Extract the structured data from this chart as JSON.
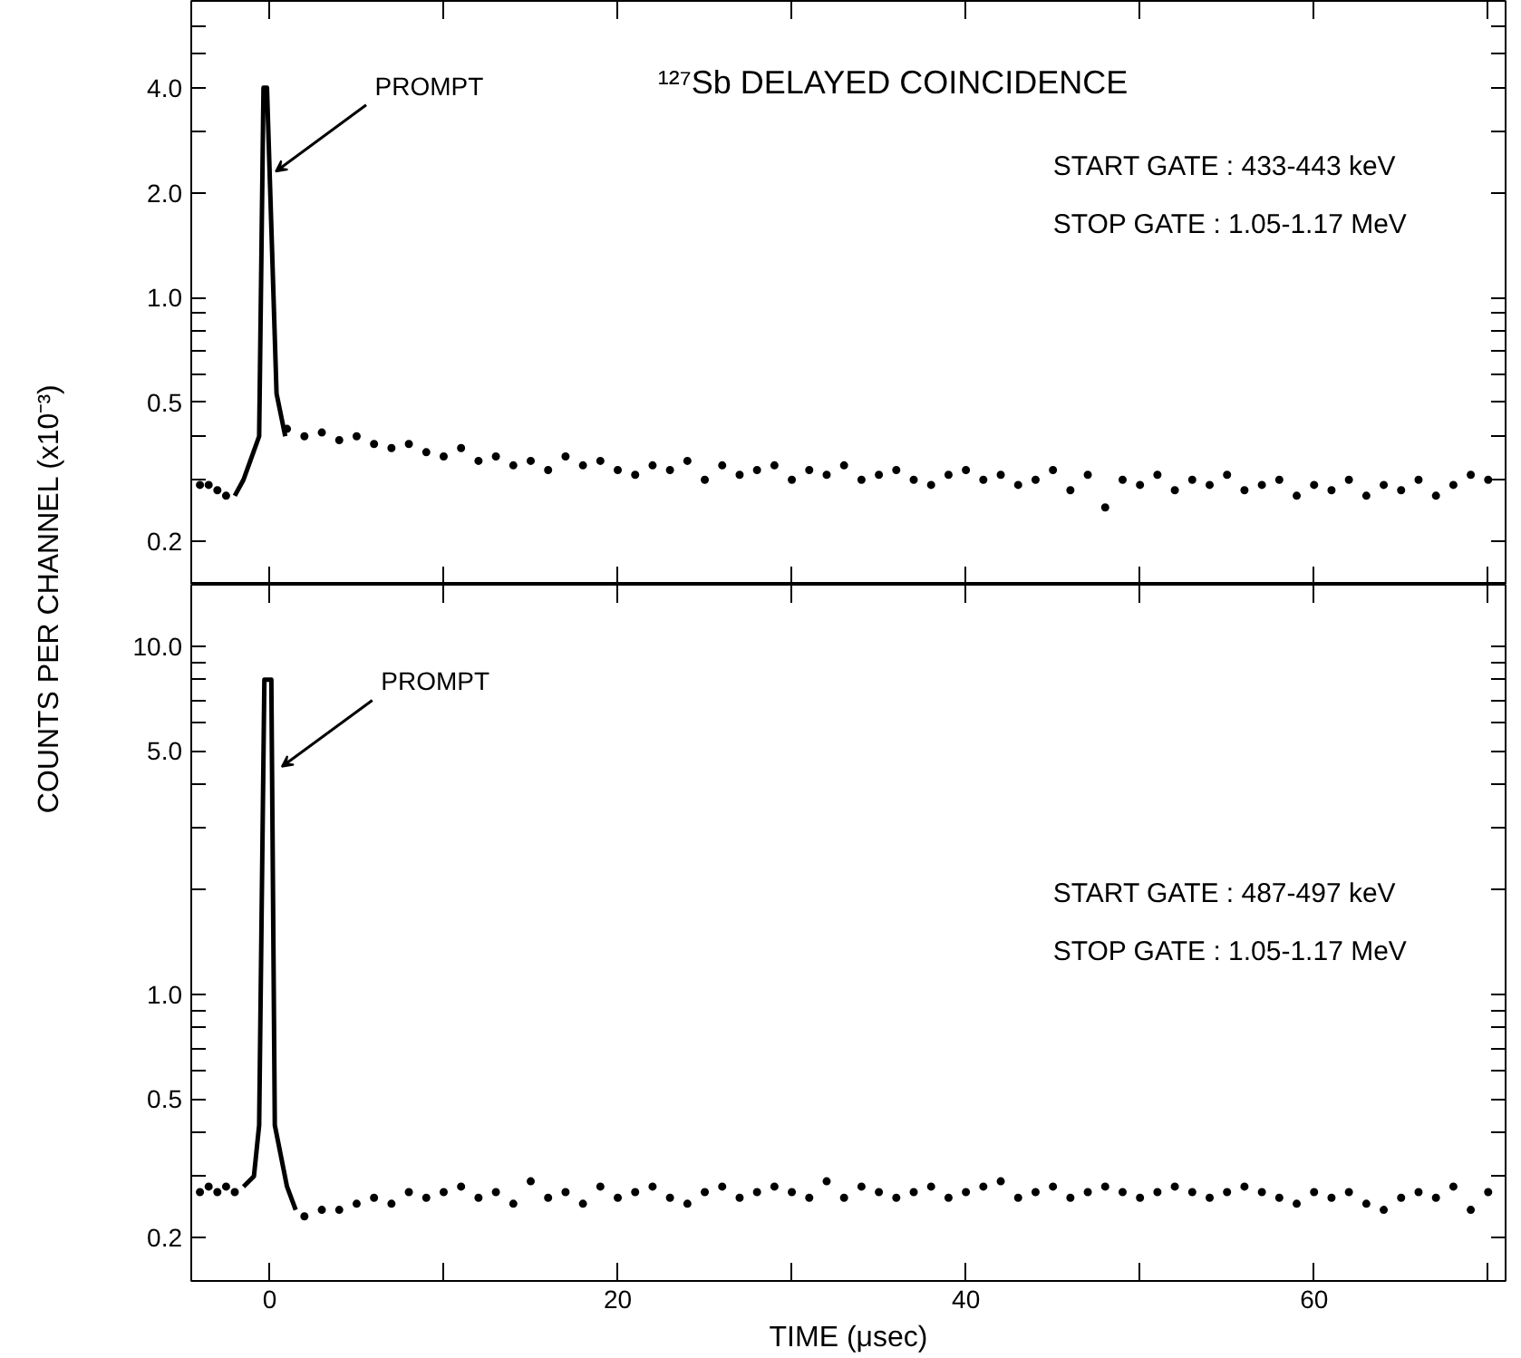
{
  "chart_data": [
    {
      "type": "scatter",
      "title": "¹²⁷Sb DELAYED COINCIDENCE",
      "ylabel": "COUNTS PER CHANNEL (x10⁻³)",
      "log": "y",
      "grid": false,
      "tick_labels": "y",
      "xlim": [
        -4.5,
        71
      ],
      "ylim": [
        0.15,
        7.1
      ],
      "xticks": [
        0,
        {
          "value": 10,
          "label": null
        },
        20,
        {
          "value": 30,
          "label": null
        },
        40,
        {
          "value": 50,
          "label": null
        },
        60,
        {
          "value": 70,
          "label": null
        }
      ],
      "yticks": [
        {
          "value": 0.2,
          "label": "0.2"
        },
        {
          "value": 0.3,
          "label": null
        },
        {
          "value": 0.4,
          "label": null
        },
        {
          "value": 0.5,
          "label": "0.5"
        },
        {
          "value": 0.6,
          "label": null
        },
        {
          "value": 0.7,
          "label": null
        },
        {
          "value": 0.8,
          "label": null
        },
        {
          "value": 0.9,
          "label": null
        },
        {
          "value": 1.0,
          "label": "1.0"
        },
        {
          "value": 2.0,
          "label": "2.0"
        },
        {
          "value": 3.0,
          "label": null
        },
        {
          "value": 4.0,
          "label": "4.0"
        },
        {
          "value": 5.0,
          "label": null
        },
        {
          "value": 6.0,
          "label": null
        }
      ],
      "annotations": [
        {
          "text": "PROMPT",
          "x": 0.05,
          "y": 2.3
        },
        "START GATE :  433-443 keV",
        "STOP GATE   :  1.05-1.17 MeV"
      ],
      "series": [
        {
          "type": "line",
          "color": "#000000",
          "x": [
            -2.0,
            -1.5,
            -0.6,
            -0.35,
            -0.15,
            0.4,
            0.9
          ],
          "values": [
            0.27,
            0.3,
            0.4,
            4.0,
            4.0,
            0.53,
            0.4
          ]
        },
        {
          "marker": "circle",
          "color": "#000000",
          "x": [
            -4,
            -3.5,
            -3,
            -2.5,
            1,
            2,
            3,
            4,
            5,
            6,
            7,
            8,
            9,
            10,
            11,
            12,
            13,
            14,
            15,
            16,
            17,
            18,
            19,
            20,
            21,
            22,
            23,
            24,
            25,
            26,
            27,
            28,
            29,
            30,
            31,
            32,
            33,
            34,
            35,
            36,
            37,
            38,
            39,
            40,
            41,
            42,
            43,
            44,
            45,
            46,
            47,
            48,
            49,
            50,
            51,
            52,
            53,
            54,
            55,
            56,
            57,
            58,
            59,
            60,
            61,
            62,
            63,
            64,
            65,
            66,
            67,
            68,
            69,
            70
          ],
          "values": [
            0.29,
            0.29,
            0.28,
            0.27,
            0.42,
            0.4,
            0.41,
            0.39,
            0.4,
            0.38,
            0.37,
            0.38,
            0.36,
            0.35,
            0.37,
            0.34,
            0.35,
            0.33,
            0.34,
            0.32,
            0.35,
            0.33,
            0.34,
            0.32,
            0.31,
            0.33,
            0.32,
            0.34,
            0.3,
            0.33,
            0.31,
            0.32,
            0.33,
            0.3,
            0.32,
            0.31,
            0.33,
            0.3,
            0.31,
            0.32,
            0.3,
            0.29,
            0.31,
            0.32,
            0.3,
            0.31,
            0.29,
            0.3,
            0.32,
            0.28,
            0.31,
            0.25,
            0.3,
            0.29,
            0.31,
            0.28,
            0.3,
            0.29,
            0.31,
            0.28,
            0.29,
            0.3,
            0.27,
            0.29,
            0.28,
            0.3,
            0.27,
            0.29,
            0.28,
            0.3,
            0.27,
            0.29,
            0.31,
            0.3
          ]
        }
      ]
    },
    {
      "type": "scatter",
      "xlabel": "TIME (μsec)",
      "log": "y",
      "grid": false,
      "xlim": [
        -4.5,
        71
      ],
      "ylim": [
        0.15,
        15
      ],
      "xticks": [
        0,
        {
          "value": 10,
          "label": null
        },
        20,
        {
          "value": 30,
          "label": null
        },
        40,
        {
          "value": 50,
          "label": null
        },
        60,
        {
          "value": 70,
          "label": null
        }
      ],
      "yticks": [
        {
          "value": 0.2,
          "label": "0.2"
        },
        {
          "value": 0.3,
          "label": null
        },
        {
          "value": 0.4,
          "label": null
        },
        {
          "value": 0.5,
          "label": "0.5"
        },
        {
          "value": 0.6,
          "label": null
        },
        {
          "value": 0.7,
          "label": null
        },
        {
          "value": 0.8,
          "label": null
        },
        {
          "value": 0.9,
          "label": null
        },
        {
          "value": 1.0,
          "label": "1.0"
        },
        {
          "value": 2.0,
          "label": null
        },
        {
          "value": 3.0,
          "label": null
        },
        {
          "value": 4.0,
          "label": null
        },
        {
          "value": 5.0,
          "label": "5.0"
        },
        {
          "value": 6.0,
          "label": null
        },
        {
          "value": 7.0,
          "label": null
        },
        {
          "value": 8.0,
          "label": null
        },
        {
          "value": 9.0,
          "label": null
        },
        {
          "value": 10.0,
          "label": "10.0"
        }
      ],
      "annotations": [
        {
          "text": "PROMPT",
          "x": 0.4,
          "y": 4.5
        },
        "START GATE :  487-497 keV",
        "STOP  GATE :  1.05-1.17 MeV"
      ],
      "series": [
        {
          "type": "line",
          "color": "#000000",
          "x": [
            -1.5,
            -0.9,
            -0.6,
            -0.3,
            0.1,
            0.3,
            1.0,
            1.5
          ],
          "values": [
            0.28,
            0.3,
            0.42,
            8.0,
            8.0,
            0.42,
            0.28,
            0.24
          ]
        },
        {
          "marker": "circle",
          "color": "#000000",
          "x": [
            -4,
            -3.5,
            -3,
            -2.5,
            -2,
            2,
            3,
            4,
            5,
            6,
            7,
            8,
            9,
            10,
            11,
            12,
            13,
            14,
            15,
            16,
            17,
            18,
            19,
            20,
            21,
            22,
            23,
            24,
            25,
            26,
            27,
            28,
            29,
            30,
            31,
            32,
            33,
            34,
            35,
            36,
            37,
            38,
            39,
            40,
            41,
            42,
            43,
            44,
            45,
            46,
            47,
            48,
            49,
            50,
            51,
            52,
            53,
            54,
            55,
            56,
            57,
            58,
            59,
            60,
            61,
            62,
            63,
            64,
            65,
            66,
            67,
            68,
            69,
            70
          ],
          "values": [
            0.27,
            0.28,
            0.27,
            0.28,
            0.27,
            0.23,
            0.24,
            0.24,
            0.25,
            0.26,
            0.25,
            0.27,
            0.26,
            0.27,
            0.28,
            0.26,
            0.27,
            0.25,
            0.29,
            0.26,
            0.27,
            0.25,
            0.28,
            0.26,
            0.27,
            0.28,
            0.26,
            0.25,
            0.27,
            0.28,
            0.26,
            0.27,
            0.28,
            0.27,
            0.26,
            0.29,
            0.26,
            0.28,
            0.27,
            0.26,
            0.27,
            0.28,
            0.26,
            0.27,
            0.28,
            0.29,
            0.26,
            0.27,
            0.28,
            0.26,
            0.27,
            0.28,
            0.27,
            0.26,
            0.27,
            0.28,
            0.27,
            0.26,
            0.27,
            0.28,
            0.27,
            0.26,
            0.25,
            0.27,
            0.26,
            0.27,
            0.25,
            0.24,
            0.26,
            0.27,
            0.26,
            0.28,
            0.24,
            0.27
          ]
        }
      ]
    }
  ]
}
